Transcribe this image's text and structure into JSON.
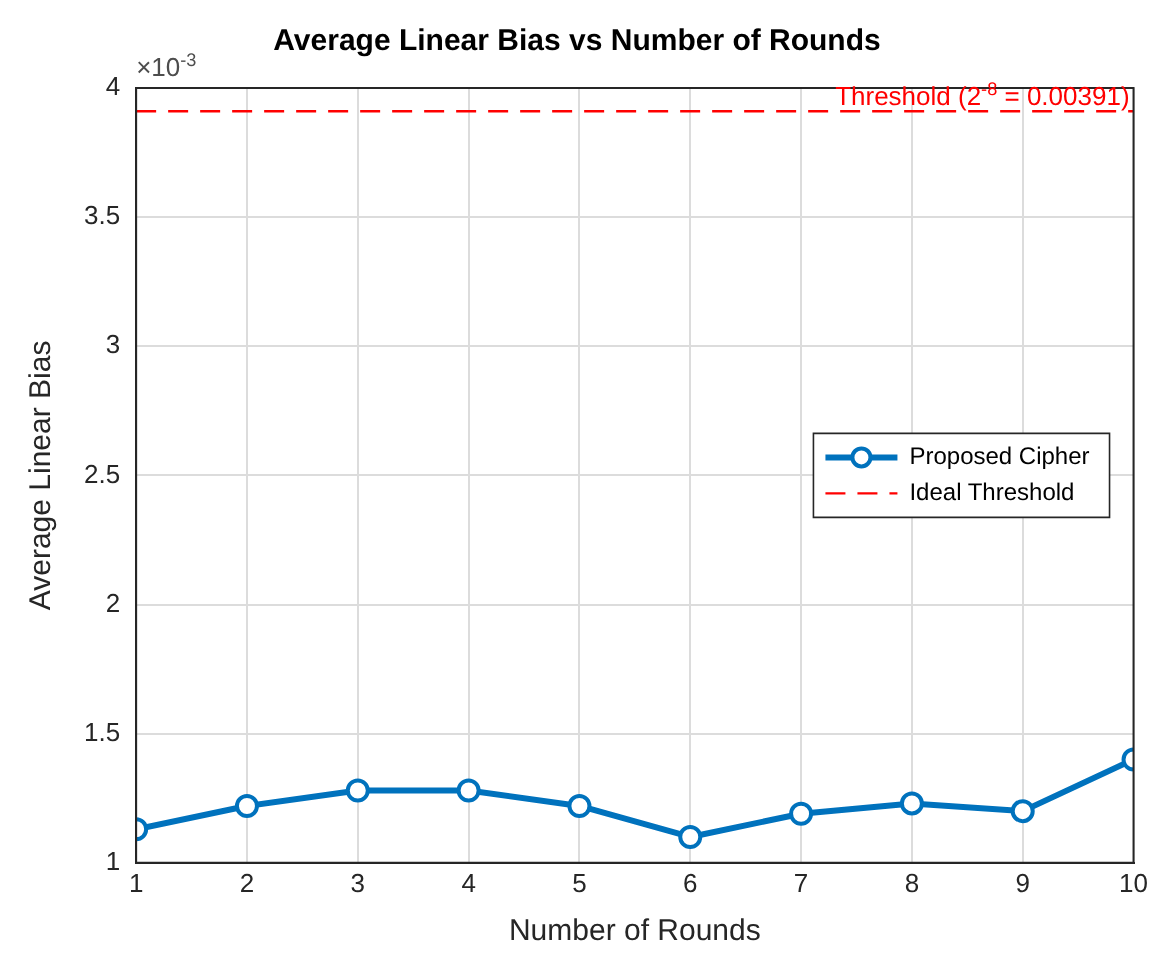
{
  "chart_data": {
    "type": "line",
    "title": "Average Linear Bias vs Number of Rounds",
    "xlabel": "Number of Rounds",
    "ylabel": "Average Linear Bias",
    "x": [
      1,
      2,
      3,
      4,
      5,
      6,
      7,
      8,
      9,
      10
    ],
    "series": [
      {
        "name": "Proposed Cipher",
        "color": "#0072bd",
        "values": [
          1.13,
          1.22,
          1.28,
          1.28,
          1.22,
          1.1,
          1.19,
          1.23,
          1.2,
          1.4
        ]
      }
    ],
    "xlim": [
      1,
      10
    ],
    "xticks": [
      1,
      2,
      3,
      4,
      5,
      6,
      7,
      8,
      9,
      10
    ],
    "ylim": [
      1,
      4
    ],
    "yticks": [
      1,
      1.5,
      2,
      2.5,
      3,
      3.5,
      4
    ],
    "ref_lines": [
      {
        "axis": "y",
        "value": 3.91,
        "label": "Ideal Threshold",
        "color": "#ff0000",
        "line_style": "dashed"
      }
    ],
    "annotations": [
      "×10$^{-3}$",
      {
        "text": "Threshold (2$^{-8}$ = 0.00391)",
        "x": 10,
        "y": 3.91
      }
    ],
    "grid": true,
    "legend": "center right",
    "marker": "circle",
    "line_style": "solid"
  }
}
